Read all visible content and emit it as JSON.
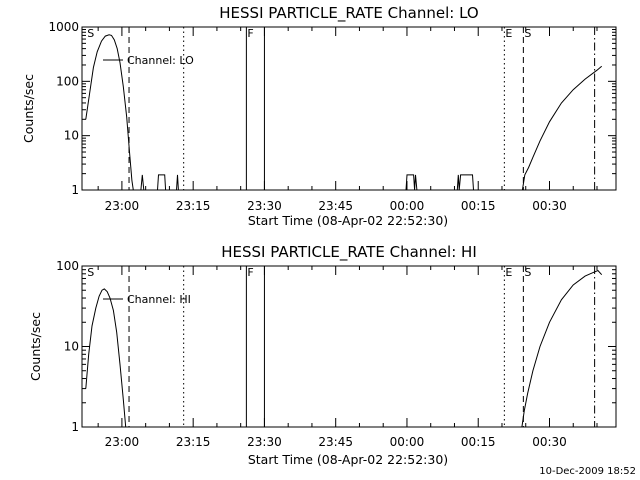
{
  "chart_data": [
    {
      "type": "line",
      "title": "HESSI PARTICLE_RATE Channel: LO",
      "xlabel": "Start Time (08-Apr-02 22:52:30)",
      "ylabel": "Counts/sec",
      "yscale": "log",
      "ylim": [
        1,
        1000
      ],
      "yticks": [
        1,
        10,
        100,
        1000
      ],
      "ytick_labels": [
        "1",
        "10",
        "100",
        "1000"
      ],
      "xlim_minutes": [
        -7.5,
        32.5
      ],
      "xticks_minutes": [
        0,
        15,
        30,
        45,
        60,
        75,
        90
      ],
      "xtick_labels": [
        "23:00",
        "23:15",
        "23:30",
        "23:45",
        "00:00",
        "00:15",
        "00:30"
      ],
      "legend": {
        "label": "Channel: LO",
        "placement": "top-left"
      },
      "series": [
        {
          "name": "Channel: LO",
          "segments": [
            [
              [
                -7.6,
                20
              ],
              [
                -6.8,
                60
              ],
              [
                -6.0,
                180
              ],
              [
                -5.2,
                350
              ],
              [
                -4.3,
                550
              ],
              [
                -3.5,
                680
              ],
              [
                -2.7,
                720
              ],
              [
                -2.2,
                700
              ],
              [
                -1.6,
                580
              ],
              [
                -1.0,
                400
              ],
              [
                -0.4,
                220
              ],
              [
                0.3,
                80
              ],
              [
                1.0,
                22
              ],
              [
                1.6,
                5
              ],
              [
                2.1,
                1.5
              ],
              [
                2.4,
                1
              ]
            ],
            [
              [
                4.0,
                1
              ],
              [
                4.3,
                1.9
              ],
              [
                4.6,
                1
              ]
            ],
            [
              [
                7.5,
                1
              ],
              [
                7.7,
                1.9
              ],
              [
                9.0,
                1.9
              ],
              [
                9.2,
                1
              ]
            ],
            [
              [
                11.5,
                1
              ],
              [
                11.7,
                1.9
              ],
              [
                11.9,
                1
              ]
            ],
            [
              [
                59.8,
                1
              ],
              [
                60.0,
                1.9
              ],
              [
                61.4,
                1.9
              ],
              [
                61.6,
                1
              ],
              [
                61.8,
                1.9
              ],
              [
                62.1,
                1
              ]
            ],
            [
              [
                70.6,
                1
              ],
              [
                70.8,
                1.9
              ],
              [
                71.0,
                1
              ],
              [
                71.3,
                1.9
              ],
              [
                73.8,
                1.9
              ],
              [
                74.0,
                1
              ]
            ],
            [
              [
                84.3,
                1
              ],
              [
                84.8,
                1.9
              ],
              [
                85.6,
                2.6
              ],
              [
                86.5,
                4
              ],
              [
                88.0,
                8
              ],
              [
                90.0,
                18
              ],
              [
                92.5,
                40
              ],
              [
                95.0,
                70
              ],
              [
                97.5,
                110
              ],
              [
                100.0,
                160
              ],
              [
                101.0,
                190
              ]
            ]
          ]
        }
      ],
      "annotations": [
        {
          "label": "S",
          "x_minutes": -7.5,
          "line": "none"
        },
        {
          "label": "",
          "x_minutes": 1.5,
          "line": "dashed"
        },
        {
          "label": "",
          "x_minutes": 13.0,
          "line": "dotted"
        },
        {
          "label": "F",
          "x_minutes": 26.2,
          "line": "solid"
        },
        {
          "label": "",
          "x_minutes": 30.0,
          "line": "solid"
        },
        {
          "label": "E",
          "x_minutes": 80.5,
          "line": "dotted"
        },
        {
          "label": "S",
          "x_minutes": 84.5,
          "line": "dashed"
        },
        {
          "label": "",
          "x_minutes": 99.5,
          "line": "dashdot"
        }
      ]
    },
    {
      "type": "line",
      "title": "HESSI PARTICLE_RATE Channel: HI",
      "xlabel": "Start Time (08-Apr-02 22:52:30)",
      "ylabel": "Counts/sec",
      "yscale": "log",
      "ylim": [
        1,
        100
      ],
      "yticks": [
        1,
        10,
        100
      ],
      "ytick_labels": [
        "1",
        "10",
        "100"
      ],
      "xticks_minutes": [
        0,
        15,
        30,
        45,
        60,
        75,
        90
      ],
      "xtick_labels": [
        "23:00",
        "23:15",
        "23:30",
        "23:45",
        "00:00",
        "00:15",
        "00:30"
      ],
      "legend": {
        "label": "Channel: HI",
        "placement": "top-left"
      },
      "series": [
        {
          "name": "Channel: HI",
          "segments": [
            [
              [
                -7.6,
                3
              ],
              [
                -7.0,
                8
              ],
              [
                -6.3,
                18
              ],
              [
                -5.5,
                30
              ],
              [
                -4.8,
                42
              ],
              [
                -4.2,
                50
              ],
              [
                -3.7,
                52
              ],
              [
                -3.1,
                48
              ],
              [
                -2.5,
                40
              ],
              [
                -1.8,
                28
              ],
              [
                -1.1,
                15
              ],
              [
                -0.4,
                6
              ],
              [
                0.3,
                2.2
              ],
              [
                0.8,
                1
              ]
            ],
            [
              [
                84.2,
                1
              ],
              [
                84.7,
                1.6
              ],
              [
                85.4,
                2.6
              ],
              [
                86.5,
                5
              ],
              [
                88.0,
                10
              ],
              [
                90.0,
                20
              ],
              [
                92.5,
                38
              ],
              [
                95.0,
                58
              ],
              [
                97.5,
                75
              ],
              [
                99.0,
                82
              ],
              [
                100.2,
                88
              ],
              [
                101.0,
                78
              ]
            ]
          ]
        }
      ],
      "annotations": [
        {
          "label": "S",
          "x_minutes": -7.5,
          "line": "none"
        },
        {
          "label": "",
          "x_minutes": 1.5,
          "line": "dashed"
        },
        {
          "label": "",
          "x_minutes": 13.0,
          "line": "dotted"
        },
        {
          "label": "F",
          "x_minutes": 26.2,
          "line": "solid"
        },
        {
          "label": "",
          "x_minutes": 30.0,
          "line": "solid"
        },
        {
          "label": "E",
          "x_minutes": 80.5,
          "line": "dotted"
        },
        {
          "label": "S",
          "x_minutes": 84.5,
          "line": "dashed"
        },
        {
          "label": "",
          "x_minutes": 99.5,
          "line": "dashdot"
        }
      ]
    }
  ],
  "footer": {
    "timestamp": "10-Dec-2009 18:52"
  },
  "colors": {
    "background": "#ffffff",
    "foreground": "#000000"
  }
}
